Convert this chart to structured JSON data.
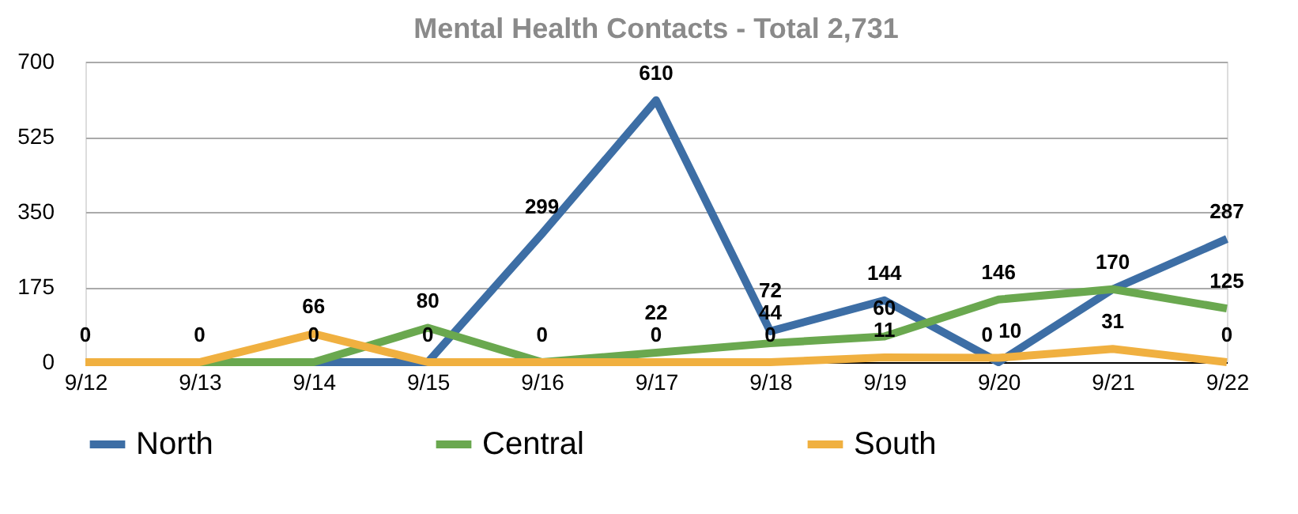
{
  "chart_data": {
    "type": "line",
    "title": "Mental Health Contacts - Total 2,731",
    "categories": [
      "9/12",
      "9/13",
      "9/14",
      "9/15",
      "9/16",
      "9/17",
      "9/18",
      "9/19",
      "9/20",
      "9/21",
      "9/22"
    ],
    "series": [
      {
        "name": "North",
        "color": "#3d6ea5",
        "values": [
          0,
          0,
          0,
          0,
          299,
          610,
          72,
          144,
          0,
          170,
          287
        ],
        "value_labels": [
          "0",
          "0",
          "0",
          "0",
          "299",
          "610",
          "72",
          "144",
          "0",
          "170",
          "287"
        ]
      },
      {
        "name": "Central",
        "color": "#6aa84f",
        "values": [
          0,
          0,
          0,
          80,
          0,
          22,
          44,
          60,
          146,
          170,
          125
        ],
        "value_labels": [
          null,
          null,
          null,
          "80",
          "0",
          "22",
          "44",
          "60",
          "146",
          null,
          "125"
        ]
      },
      {
        "name": "South",
        "color": "#f0b040",
        "values": [
          0,
          0,
          66,
          0,
          0,
          0,
          0,
          11,
          10,
          31,
          0
        ],
        "value_labels": [
          null,
          null,
          "66",
          null,
          null,
          "0",
          "0",
          "11",
          "10",
          "31",
          "0"
        ]
      }
    ],
    "ylim": [
      0,
      700
    ],
    "yticks": [
      0,
      175,
      350,
      525,
      700
    ],
    "grid": "y",
    "legend": "bottom",
    "marker": "none",
    "line_style": "solid"
  }
}
